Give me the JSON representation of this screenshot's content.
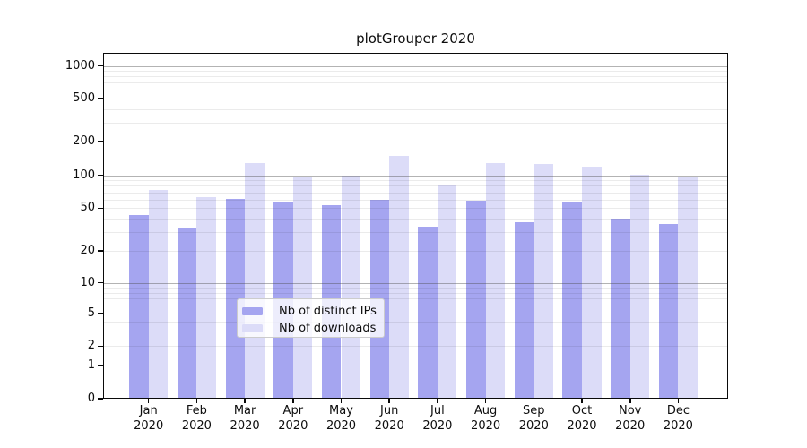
{
  "title": "plotGrouper 2020",
  "chart_data": {
    "type": "bar",
    "title": "plotGrouper 2020",
    "x_categories": [
      "Jan",
      "Feb",
      "Mar",
      "Apr",
      "May",
      "Jun",
      "Jul",
      "Aug",
      "Sep",
      "Oct",
      "Nov",
      "Dec"
    ],
    "x_year": "2020",
    "series": [
      {
        "name": "Nb of distinct IPs",
        "color": "#a5a5f0",
        "values": [
          43,
          33,
          61,
          58,
          53,
          60,
          34,
          59,
          37,
          57,
          40,
          36
        ]
      },
      {
        "name": "Nb of downloads",
        "color": "#dcdcf8",
        "values": [
          74,
          63,
          128,
          97,
          100,
          150,
          83,
          128,
          127,
          120,
          102,
          95
        ]
      }
    ],
    "y_axis": {
      "scale": "log-like (0,1,2,5 pattern)",
      "ticks": [
        0,
        1,
        2,
        5,
        10,
        20,
        50,
        100,
        200,
        500,
        1000
      ],
      "major_gridlines": [
        1,
        10,
        100,
        1000
      ],
      "range": [
        0,
        1000
      ]
    },
    "legend": {
      "position": "bottom-center-inside",
      "items": [
        "Nb of distinct IPs",
        "Nb of downloads"
      ]
    },
    "grid": true
  }
}
